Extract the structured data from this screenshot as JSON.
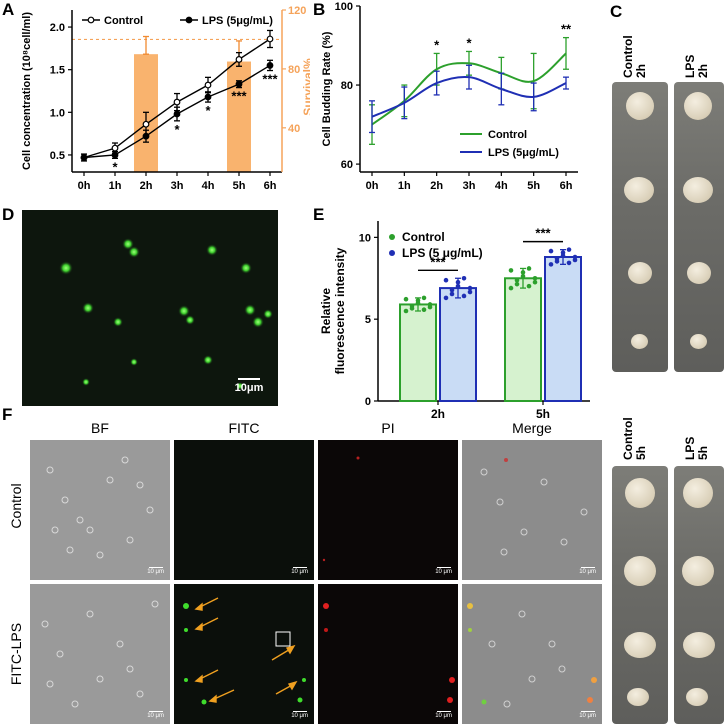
{
  "panel_labels": {
    "A": "A",
    "B": "B",
    "C": "C",
    "D": "D",
    "E": "E",
    "F": "F"
  },
  "chart_data": [
    {
      "id": "A",
      "type": "line+bar",
      "ylabel": "Cell concentration (10⁸cell/ml)",
      "y2label": "Survival%",
      "categories": [
        "0h",
        "1h",
        "2h",
        "3h",
        "4h",
        "5h",
        "6h"
      ],
      "ylim": [
        0.3,
        2.2
      ],
      "yticks": [
        "0.5",
        "1.0",
        "1.5",
        "2.0"
      ],
      "y2lim": [
        10,
        120
      ],
      "y2ticks": [
        "40",
        "80",
        "120"
      ],
      "series": [
        {
          "name": "Control",
          "values": [
            0.47,
            0.58,
            0.86,
            1.12,
            1.32,
            1.62,
            1.86
          ],
          "err": [
            0.04,
            0.06,
            0.14,
            0.1,
            0.09,
            0.08,
            0.1
          ],
          "marker": "open"
        },
        {
          "name": "LPS (5μg/mL)",
          "values": [
            0.47,
            0.5,
            0.72,
            0.98,
            1.18,
            1.33,
            1.55
          ],
          "err": [
            0.04,
            0.04,
            0.07,
            0.08,
            0.06,
            0.04,
            0.06
          ],
          "marker": "filled"
        }
      ],
      "bars": {
        "categories": [
          "2h",
          "5h"
        ],
        "values": [
          90,
          85
        ],
        "err": [
          12,
          14
        ]
      },
      "reference_line": 100,
      "significance": [
        {
          "x": "1h",
          "label": "*"
        },
        {
          "x": "3h",
          "label": "*"
        },
        {
          "x": "4h",
          "label": "*"
        },
        {
          "x": "5h",
          "label": "***"
        },
        {
          "x": "6h",
          "label": "***"
        }
      ]
    },
    {
      "id": "B",
      "type": "line",
      "ylabel": "Cell Budding Rate (%)",
      "categories": [
        "0h",
        "1h",
        "2h",
        "3h",
        "4h",
        "5h",
        "6h"
      ],
      "ylim": [
        58,
        100
      ],
      "yticks": [
        "60",
        "80",
        "100"
      ],
      "series": [
        {
          "name": "Control",
          "values": [
            70,
            76,
            84,
            85.5,
            83,
            81,
            88
          ],
          "err": [
            5,
            4,
            4,
            3,
            4,
            7,
            4
          ],
          "color": "#2ca02c"
        },
        {
          "name": "LPS (5μg/mL)",
          "values": [
            72,
            75.5,
            80.5,
            82,
            79,
            77,
            80.5
          ],
          "err": [
            4,
            4,
            3,
            3,
            4,
            3.5,
            1.5
          ],
          "color": "#1f2fb4"
        }
      ],
      "significance": [
        {
          "x": "2h",
          "label": "*"
        },
        {
          "x": "3h",
          "label": "*"
        },
        {
          "x": "6h",
          "label": "**"
        }
      ]
    },
    {
      "id": "E",
      "type": "bar",
      "ylabel": [
        "Relative",
        "fluorescence intensity"
      ],
      "categories": [
        "2h",
        "5h"
      ],
      "ylim": [
        0,
        11
      ],
      "yticks": [
        "0",
        "5",
        "10"
      ],
      "series": [
        {
          "name": "Control",
          "values": [
            5.9,
            7.5
          ],
          "err": [
            0.4,
            0.6
          ],
          "color": "#2ca02c",
          "fill": "#d6f2cf"
        },
        {
          "name": "LPS (5 μg/mL)",
          "values": [
            6.9,
            8.8
          ],
          "err": [
            0.6,
            0.45
          ],
          "color": "#1f2fb4",
          "fill": "#c9dcf5"
        }
      ],
      "significance": [
        {
          "x": "2h",
          "label": "***"
        },
        {
          "x": "5h",
          "label": "***"
        }
      ]
    }
  ],
  "panel_c": {
    "top": {
      "labels": [
        "Control\n2h",
        "LPS\n2h"
      ]
    },
    "bottom": {
      "labels": [
        "Control\n5h",
        "LPS\n5h"
      ]
    }
  },
  "panel_d": {
    "scale_bar": "10μm"
  },
  "panel_f": {
    "columns": [
      "BF",
      "FITC",
      "PI",
      "Merge"
    ],
    "rows": [
      "Control",
      "FITC-LPS"
    ],
    "scale_bar": "10 μm"
  }
}
